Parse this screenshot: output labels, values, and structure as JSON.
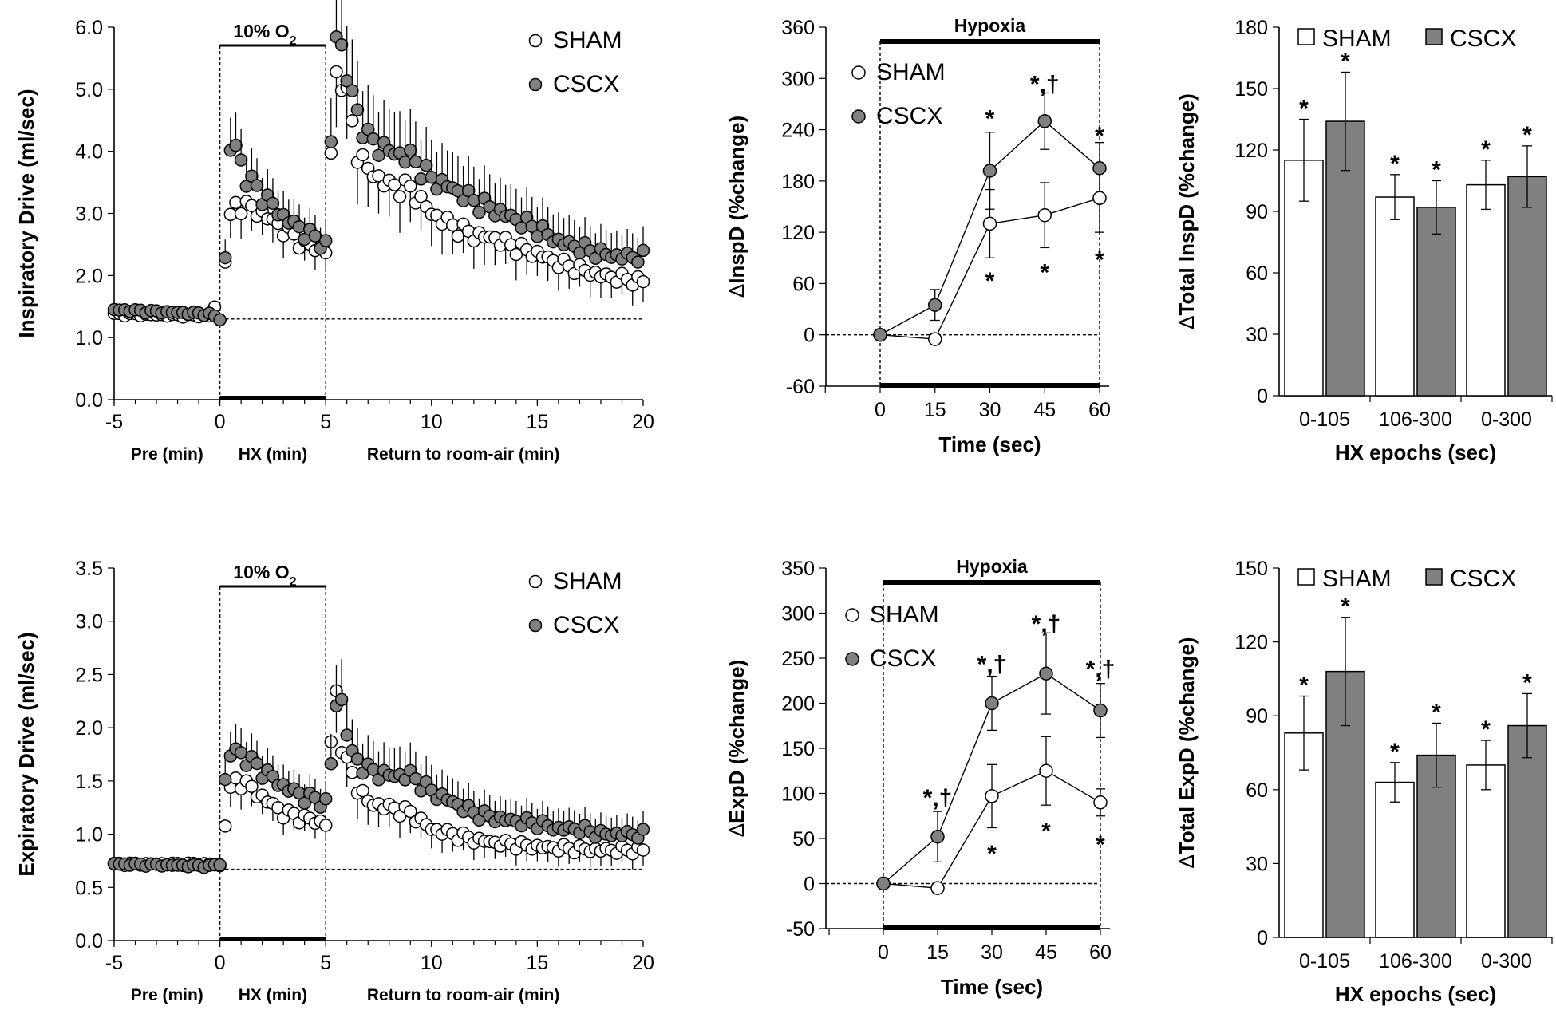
{
  "chart_data": [
    {
      "id": "insp_timecourse",
      "type": "scatter",
      "ylabel": "Inspiratory Drive (ml/sec)",
      "ylim": [
        0,
        6
      ],
      "yticks": [
        "0.0",
        "1.0",
        "2.0",
        "3.0",
        "4.0",
        "5.0",
        "6.0"
      ],
      "xlim": [
        -5,
        20
      ],
      "xticks": [
        "-5",
        "0",
        "5",
        "10",
        "15",
        "20"
      ],
      "xsublabels": [
        "Pre (min)",
        "HX (min)",
        "Return to room-air (min)"
      ],
      "box_label": "10% O",
      "box_sub": "2",
      "box_range": [
        0,
        5
      ],
      "baseline": 1.3,
      "legend": [
        "SHAM",
        "CSCX"
      ],
      "series": [
        {
          "name": "SHAM",
          "anchors": [
            [
              -5,
              1.38
            ],
            [
              -0.5,
              1.35
            ],
            [
              -0.2,
              1.52
            ],
            [
              0,
              1.28
            ],
            [
              0.3,
              2.5
            ],
            [
              0.6,
              3.1
            ],
            [
              1,
              3.15
            ],
            [
              2,
              3.0
            ],
            [
              3,
              2.75
            ],
            [
              4,
              2.5
            ],
            [
              5,
              2.4
            ],
            [
              5.1,
              2.55
            ],
            [
              5.4,
              5.25
            ],
            [
              5.8,
              5.2
            ],
            [
              6.5,
              4.0
            ],
            [
              7,
              3.7
            ],
            [
              8,
              3.45
            ],
            [
              9,
              3.4
            ],
            [
              10,
              3.0
            ],
            [
              11,
              2.8
            ],
            [
              12,
              2.65
            ],
            [
              13,
              2.6
            ],
            [
              14,
              2.45
            ],
            [
              15,
              2.35
            ],
            [
              16,
              2.2
            ],
            [
              17,
              2.1
            ],
            [
              18,
              2.0
            ],
            [
              19,
              1.95
            ],
            [
              20,
              1.9
            ]
          ],
          "step": 0.25
        },
        {
          "name": "CSCX",
          "anchors": [
            [
              -5,
              1.45
            ],
            [
              -0.5,
              1.38
            ],
            [
              0,
              1.3
            ],
            [
              0.2,
              1.9
            ],
            [
              0.5,
              4.05
            ],
            [
              0.8,
              4.05
            ],
            [
              1.2,
              3.6
            ],
            [
              2,
              3.3
            ],
            [
              3,
              2.95
            ],
            [
              4,
              2.7
            ],
            [
              5,
              2.5
            ],
            [
              5.1,
              2.25
            ],
            [
              5.4,
              6.0
            ],
            [
              5.7,
              5.75
            ],
            [
              6.2,
              4.9
            ],
            [
              7,
              4.2
            ],
            [
              8,
              4.0
            ],
            [
              9,
              3.9
            ],
            [
              10,
              3.55
            ],
            [
              11,
              3.4
            ],
            [
              12,
              3.2
            ],
            [
              13,
              3.05
            ],
            [
              14,
              2.9
            ],
            [
              15,
              2.75
            ],
            [
              16,
              2.55
            ],
            [
              17,
              2.45
            ],
            [
              18,
              2.35
            ],
            [
              19,
              2.3
            ],
            [
              20,
              2.3
            ]
          ],
          "step": 0.25
        }
      ]
    },
    {
      "id": "insp_pct",
      "type": "line",
      "ylabel": "InspD (%change)",
      "ylim": [
        -60,
        360
      ],
      "yticks": [
        "-60",
        "0",
        "60",
        "120",
        "180",
        "240",
        "300",
        "360"
      ],
      "x": [
        0,
        15,
        30,
        45,
        60
      ],
      "xticks": [
        "0",
        "15",
        "30",
        "45",
        "60"
      ],
      "xlabel": "Time (sec)",
      "title": "Hypoxia",
      "legend": [
        "SHAM",
        "CSCX"
      ],
      "series": [
        {
          "name": "SHAM",
          "values": [
            0,
            -5,
            130,
            140,
            160
          ],
          "err": [
            0,
            5,
            40,
            38,
            40
          ]
        },
        {
          "name": "CSCX",
          "values": [
            0,
            35,
            192,
            250,
            195
          ],
          "err": [
            0,
            18,
            45,
            33,
            30
          ]
        }
      ],
      "annotations": [
        {
          "x": 30,
          "y": 255,
          "text": "*"
        },
        {
          "x": 45,
          "y": 295,
          "text": "*,†"
        },
        {
          "x": 60,
          "y": 235,
          "text": "*"
        },
        {
          "x": 30,
          "y": 65,
          "text": "*"
        },
        {
          "x": 45,
          "y": 75,
          "text": "*"
        },
        {
          "x": 60,
          "y": 90,
          "text": "*"
        }
      ]
    },
    {
      "id": "insp_total",
      "type": "bar",
      "ylabel": "Total InspD (%change)",
      "ylim": [
        0,
        180
      ],
      "yticks": [
        "0",
        "30",
        "60",
        "90",
        "120",
        "150",
        "180"
      ],
      "categories": [
        "0-105",
        "106-300",
        "0-300"
      ],
      "xlabel": "HX epochs (sec)",
      "legend": [
        "SHAM",
        "CSCX"
      ],
      "series": [
        {
          "name": "SHAM",
          "values": [
            115,
            97,
            103
          ],
          "err": [
            20,
            11,
            12
          ]
        },
        {
          "name": "CSCX",
          "values": [
            134,
            92,
            107
          ],
          "err": [
            24,
            13,
            15
          ]
        }
      ],
      "stars": [
        "*",
        "*",
        "*",
        "*",
        "*",
        "*"
      ]
    },
    {
      "id": "exp_timecourse",
      "type": "scatter",
      "ylabel": "Expiratory Drive (ml/sec)",
      "ylim": [
        0,
        3.5
      ],
      "yticks": [
        "0.0",
        "0.5",
        "1.0",
        "1.5",
        "2.0",
        "2.5",
        "3.0",
        "3.5"
      ],
      "xlim": [
        -5,
        20
      ],
      "xticks": [
        "-5",
        "0",
        "5",
        "10",
        "15",
        "20"
      ],
      "xsublabels": [
        "Pre (min)",
        "HX (min)",
        "Return to room-air (min)"
      ],
      "box_label": "10% O",
      "box_sub": "2",
      "box_range": [
        0,
        5
      ],
      "baseline": 0.67,
      "legend": [
        "SHAM",
        "CSCX"
      ],
      "series": [
        {
          "name": "SHAM",
          "anchors": [
            [
              -5,
              0.72
            ],
            [
              -0.5,
              0.72
            ],
            [
              0,
              0.7
            ],
            [
              0.3,
              1.2
            ],
            [
              0.6,
              1.5
            ],
            [
              1,
              1.5
            ],
            [
              2,
              1.35
            ],
            [
              3,
              1.2
            ],
            [
              4,
              1.15
            ],
            [
              5,
              1.1
            ],
            [
              5.1,
              1.15
            ],
            [
              5.4,
              2.52
            ],
            [
              5.8,
              1.75
            ],
            [
              6.5,
              1.45
            ],
            [
              7,
              1.3
            ],
            [
              8,
              1.25
            ],
            [
              9,
              1.2
            ],
            [
              10,
              1.05
            ],
            [
              11,
              1.0
            ],
            [
              12,
              0.95
            ],
            [
              13,
              0.92
            ],
            [
              14,
              0.9
            ],
            [
              15,
              0.88
            ],
            [
              16,
              0.87
            ],
            [
              17,
              0.86
            ],
            [
              18,
              0.85
            ],
            [
              19,
              0.85
            ],
            [
              20,
              0.85
            ]
          ],
          "step": 0.25
        },
        {
          "name": "CSCX",
          "anchors": [
            [
              -5,
              0.72
            ],
            [
              -0.5,
              0.7
            ],
            [
              0,
              0.72
            ],
            [
              0.3,
              1.65
            ],
            [
              0.6,
              1.8
            ],
            [
              1,
              1.75
            ],
            [
              2,
              1.6
            ],
            [
              3,
              1.45
            ],
            [
              4,
              1.35
            ],
            [
              5,
              1.3
            ],
            [
              5.1,
              1.1
            ],
            [
              5.4,
              2.2
            ],
            [
              5.7,
              2.3
            ],
            [
              6.2,
              1.75
            ],
            [
              7,
              1.6
            ],
            [
              8,
              1.55
            ],
            [
              9,
              1.55
            ],
            [
              10,
              1.4
            ],
            [
              11,
              1.3
            ],
            [
              12,
              1.2
            ],
            [
              13,
              1.15
            ],
            [
              14,
              1.12
            ],
            [
              15,
              1.1
            ],
            [
              16,
              1.05
            ],
            [
              17,
              1.05
            ],
            [
              18,
              1.0
            ],
            [
              19,
              1.0
            ],
            [
              20,
              1.0
            ]
          ],
          "step": 0.25
        }
      ]
    },
    {
      "id": "exp_pct",
      "type": "line",
      "ylabel": "ExpD (%change)",
      "ylim": [
        -50,
        350
      ],
      "yticks": [
        "-50",
        "0",
        "50",
        "100",
        "150",
        "200",
        "250",
        "300",
        "350"
      ],
      "x": [
        0,
        15,
        30,
        45,
        60
      ],
      "xticks": [
        "0",
        "15",
        "30",
        "45",
        "60"
      ],
      "xlabel": "Time (sec)",
      "title": "Hypoxia",
      "legend": [
        "SHAM",
        "CSCX"
      ],
      "series": [
        {
          "name": "SHAM",
          "values": [
            0,
            -5,
            97,
            125,
            90
          ],
          "err": [
            0,
            5,
            35,
            38,
            15
          ]
        },
        {
          "name": "CSCX",
          "values": [
            0,
            52,
            200,
            233,
            192
          ],
          "err": [
            0,
            28,
            30,
            45,
            30
          ]
        }
      ],
      "annotations": [
        {
          "x": 15,
          "y": 97,
          "text": "*,†"
        },
        {
          "x": 30,
          "y": 245,
          "text": "*,†"
        },
        {
          "x": 45,
          "y": 290,
          "text": "*,†"
        },
        {
          "x": 60,
          "y": 240,
          "text": "*,†"
        },
        {
          "x": 30,
          "y": 35,
          "text": "*"
        },
        {
          "x": 45,
          "y": 60,
          "text": "*"
        },
        {
          "x": 60,
          "y": 45,
          "text": "*"
        }
      ]
    },
    {
      "id": "exp_total",
      "type": "bar",
      "ylabel": "Total ExpD (%change)",
      "ylim": [
        0,
        150
      ],
      "yticks": [
        "0",
        "30",
        "60",
        "90",
        "120",
        "150"
      ],
      "categories": [
        "0-105",
        "106-300",
        "0-300"
      ],
      "xlabel": "HX epochs (sec)",
      "legend": [
        "SHAM",
        "CSCX"
      ],
      "series": [
        {
          "name": "SHAM",
          "values": [
            83,
            63,
            70
          ],
          "err": [
            15,
            8,
            10
          ]
        },
        {
          "name": "CSCX",
          "values": [
            108,
            74,
            86
          ],
          "err": [
            22,
            13,
            13
          ]
        }
      ],
      "stars": [
        "*",
        "*",
        "*",
        "*",
        "*",
        "*"
      ]
    }
  ]
}
